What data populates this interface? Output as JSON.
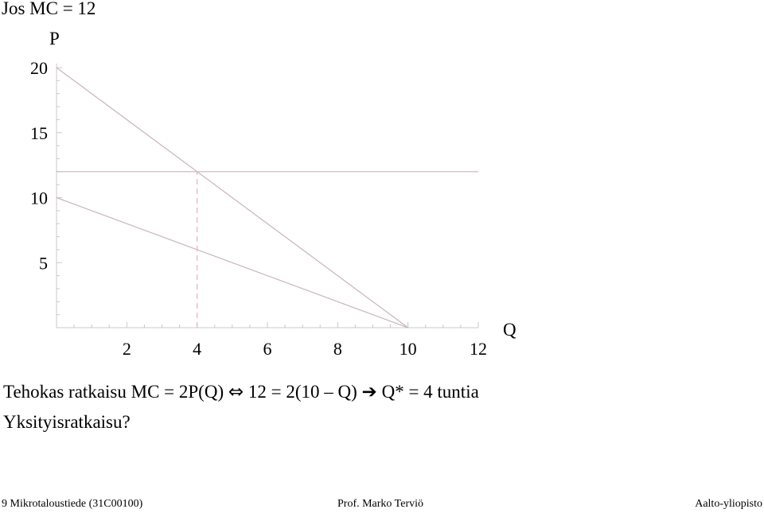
{
  "title": "Jos MC = 12",
  "chart_data": {
    "type": "line",
    "xlabel": "Q",
    "ylabel": "P",
    "xlim": [
      0,
      12
    ],
    "ylim": [
      0,
      20
    ],
    "x_ticks": [
      2,
      4,
      6,
      8,
      10,
      12
    ],
    "y_ticks": [
      5,
      10,
      15,
      20
    ],
    "series": [
      {
        "points": [
          [
            0,
            20
          ],
          [
            10,
            0
          ]
        ],
        "color": "#c8b4bc",
        "style": "solid"
      },
      {
        "points": [
          [
            0,
            10
          ],
          [
            10,
            0
          ]
        ],
        "color": "#c8b4bc",
        "style": "solid"
      },
      {
        "points": [
          [
            0,
            12
          ],
          [
            12,
            12
          ]
        ],
        "color": "#c8b4bc",
        "style": "solid"
      },
      {
        "points": [
          [
            4,
            0
          ],
          [
            4,
            12
          ]
        ],
        "color": "#e6b4bc",
        "style": "dashed"
      }
    ]
  },
  "body": {
    "line1_a": "Tehokas ratkaisu MC = 2P(Q) ",
    "line1_sym1": "⇔",
    "line1_b": " 12 = 2(10 – Q) ",
    "line1_sym2": "➔",
    "line1_c": " Q* = 4 tuntia",
    "line2": "Yksityisratkaisu?"
  },
  "footer": {
    "left": "9 Mikrotaloustiede (31C00100)",
    "center": "Prof. Marko Terviö",
    "right": "Aalto-yliopisto"
  }
}
